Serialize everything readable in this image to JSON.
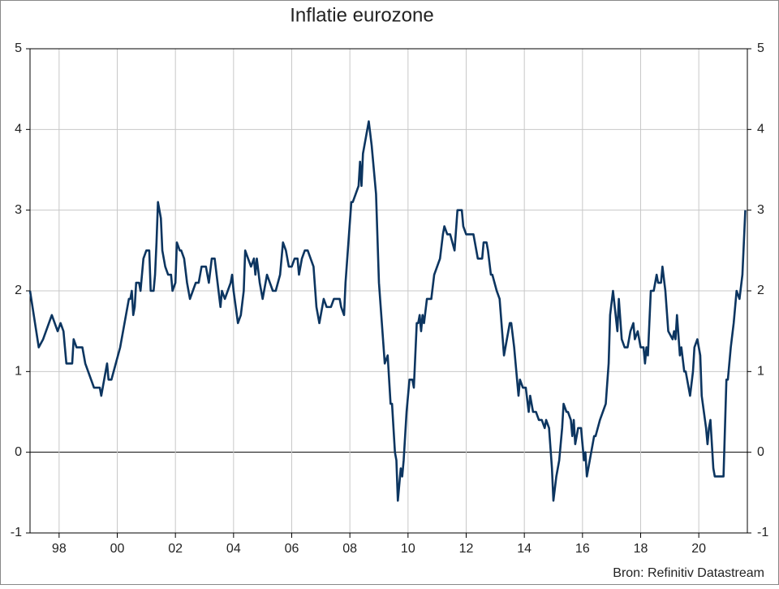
{
  "chart_data": {
    "type": "line",
    "title": "Inflatie eurozone",
    "source": "Bron: Refinitiv Datastream",
    "xlim": [
      1997.0,
      2021.67
    ],
    "ylim": [
      -1,
      5
    ],
    "xticks": [
      {
        "value": 1998,
        "label": "98"
      },
      {
        "value": 2000,
        "label": "00"
      },
      {
        "value": 2002,
        "label": "02"
      },
      {
        "value": 2004,
        "label": "04"
      },
      {
        "value": 2006,
        "label": "06"
      },
      {
        "value": 2008,
        "label": "08"
      },
      {
        "value": 2010,
        "label": "10"
      },
      {
        "value": 2012,
        "label": "12"
      },
      {
        "value": 2014,
        "label": "14"
      },
      {
        "value": 2016,
        "label": "16"
      },
      {
        "value": 2018,
        "label": "18"
      },
      {
        "value": 2020,
        "label": "20"
      }
    ],
    "yticks": [
      -1,
      0,
      1,
      2,
      3,
      4,
      5
    ],
    "grid": true,
    "series": [
      {
        "color": "#0c3560",
        "x": [
          1997.0,
          1997.3,
          1997.45,
          1997.75,
          1997.95,
          1998.05,
          1998.15,
          1998.25,
          1998.45,
          1998.5,
          1998.6,
          1998.8,
          1998.9,
          1999.2,
          1999.4,
          1999.45,
          1999.55,
          1999.65,
          1999.7,
          1999.8,
          1999.95,
          2000.1,
          2000.4,
          2000.45,
          2000.5,
          2000.55,
          2000.6,
          2000.65,
          2000.75,
          2000.8,
          2000.9,
          2001.0,
          2001.1,
          2001.15,
          2001.25,
          2001.3,
          2001.35,
          2001.4,
          2001.5,
          2001.55,
          2001.65,
          2001.75,
          2001.85,
          2001.9,
          2002.0,
          2002.05,
          2002.15,
          2002.2,
          2002.3,
          2002.4,
          2002.5,
          2002.6,
          2002.7,
          2002.8,
          2002.9,
          2003.05,
          2003.15,
          2003.25,
          2003.35,
          2003.45,
          2003.55,
          2003.6,
          2003.7,
          2003.8,
          2003.9,
          2003.95,
          2004.0,
          2004.15,
          2004.25,
          2004.35,
          2004.4,
          2004.5,
          2004.6,
          2004.7,
          2004.75,
          2004.8,
          2004.9,
          2005.0,
          2005.1,
          2005.15,
          2005.25,
          2005.35,
          2005.45,
          2005.6,
          2005.7,
          2005.8,
          2005.9,
          2006.0,
          2006.1,
          2006.2,
          2006.25,
          2006.35,
          2006.45,
          2006.55,
          2006.75,
          2006.85,
          2006.95,
          2007.05,
          2007.1,
          2007.2,
          2007.35,
          2007.45,
          2007.65,
          2007.7,
          2007.8,
          2007.85,
          2007.95,
          2008.05,
          2008.1,
          2008.2,
          2008.3,
          2008.35,
          2008.4,
          2008.45,
          2008.6,
          2008.65,
          2008.75,
          2008.9,
          2009.0,
          2009.1,
          2009.2,
          2009.3,
          2009.4,
          2009.45,
          2009.55,
          2009.6,
          2009.65,
          2009.75,
          2009.8,
          2009.85,
          2009.95,
          2010.05,
          2010.15,
          2010.2,
          2010.3,
          2010.35,
          2010.4,
          2010.45,
          2010.5,
          2010.55,
          2010.65,
          2010.8,
          2010.9,
          2011.1,
          2011.2,
          2011.25,
          2011.35,
          2011.45,
          2011.6,
          2011.7,
          2011.85,
          2011.9,
          2012.0,
          2012.25,
          2012.3,
          2012.4,
          2012.55,
          2012.6,
          2012.7,
          2012.75,
          2012.85,
          2012.9,
          2013.05,
          2013.15,
          2013.3,
          2013.4,
          2013.5,
          2013.55,
          2013.65,
          2013.7,
          2013.8,
          2013.85,
          2013.95,
          2014.05,
          2014.15,
          2014.2,
          2014.3,
          2014.4,
          2014.5,
          2014.6,
          2014.7,
          2014.75,
          2014.85,
          2014.95,
          2015.0,
          2015.1,
          2015.2,
          2015.3,
          2015.35,
          2015.45,
          2015.5,
          2015.6,
          2015.65,
          2015.7,
          2015.75,
          2015.85,
          2015.95,
          2016.05,
          2016.1,
          2016.15,
          2016.25,
          2016.35,
          2016.4,
          2016.45,
          2016.6,
          2016.7,
          2016.8,
          2016.9,
          2016.95,
          2017.05,
          2017.2,
          2017.25,
          2017.35,
          2017.45,
          2017.55,
          2017.65,
          2017.75,
          2017.8,
          2017.9,
          2018.0,
          2018.1,
          2018.15,
          2018.2,
          2018.25,
          2018.35,
          2018.45,
          2018.55,
          2018.6,
          2018.7,
          2018.75,
          2018.85,
          2018.95,
          2019.1,
          2019.15,
          2019.2,
          2019.25,
          2019.35,
          2019.4,
          2019.5,
          2019.55,
          2019.65,
          2019.7,
          2019.8,
          2019.85,
          2019.95,
          2020.05,
          2020.1,
          2020.25,
          2020.3,
          2020.35,
          2020.4,
          2020.5,
          2020.55,
          2020.85,
          2020.95,
          2021.0,
          2021.1,
          2021.2,
          2021.3,
          2021.4,
          2021.5,
          2021.6
        ],
        "values": [
          2.0,
          1.3,
          1.4,
          1.7,
          1.5,
          1.6,
          1.5,
          1.1,
          1.1,
          1.4,
          1.3,
          1.3,
          1.1,
          0.8,
          0.8,
          0.7,
          0.9,
          1.1,
          0.9,
          0.9,
          1.1,
          1.3,
          1.9,
          1.9,
          2.0,
          1.7,
          1.8,
          2.1,
          2.1,
          2.0,
          2.4,
          2.5,
          2.5,
          2.0,
          2.0,
          2.2,
          2.6,
          3.1,
          2.9,
          2.5,
          2.3,
          2.2,
          2.2,
          2.0,
          2.1,
          2.6,
          2.5,
          2.5,
          2.4,
          2.1,
          1.9,
          2.0,
          2.1,
          2.1,
          2.3,
          2.3,
          2.1,
          2.4,
          2.4,
          2.1,
          1.8,
          2.0,
          1.9,
          2.0,
          2.1,
          2.2,
          2.0,
          1.6,
          1.7,
          2.0,
          2.5,
          2.4,
          2.3,
          2.4,
          2.2,
          2.4,
          2.1,
          1.9,
          2.1,
          2.2,
          2.1,
          2.0,
          2.0,
          2.2,
          2.6,
          2.5,
          2.3,
          2.3,
          2.4,
          2.4,
          2.2,
          2.4,
          2.5,
          2.5,
          2.3,
          1.8,
          1.6,
          1.8,
          1.9,
          1.8,
          1.8,
          1.9,
          1.9,
          1.8,
          1.7,
          2.1,
          2.6,
          3.1,
          3.1,
          3.2,
          3.3,
          3.6,
          3.3,
          3.7,
          4.0,
          4.1,
          3.8,
          3.2,
          2.1,
          1.6,
          1.1,
          1.2,
          0.6,
          0.6,
          0.0,
          -0.1,
          -0.6,
          -0.2,
          -0.3,
          -0.1,
          0.5,
          0.9,
          0.9,
          0.8,
          1.6,
          1.6,
          1.7,
          1.5,
          1.7,
          1.6,
          1.9,
          1.9,
          2.2,
          2.4,
          2.7,
          2.8,
          2.7,
          2.7,
          2.5,
          3.0,
          3.0,
          2.8,
          2.7,
          2.7,
          2.6,
          2.4,
          2.4,
          2.6,
          2.6,
          2.5,
          2.2,
          2.2,
          2.0,
          1.9,
          1.2,
          1.4,
          1.6,
          1.6,
          1.3,
          1.1,
          0.7,
          0.9,
          0.8,
          0.8,
          0.5,
          0.7,
          0.5,
          0.5,
          0.4,
          0.4,
          0.3,
          0.4,
          0.3,
          -0.2,
          -0.6,
          -0.3,
          -0.1,
          0.3,
          0.6,
          0.5,
          0.5,
          0.4,
          0.2,
          0.4,
          0.1,
          0.3,
          0.3,
          -0.1,
          0.0,
          -0.3,
          -0.1,
          0.1,
          0.2,
          0.2,
          0.4,
          0.5,
          0.6,
          1.1,
          1.7,
          2.0,
          1.5,
          1.9,
          1.4,
          1.3,
          1.3,
          1.5,
          1.6,
          1.4,
          1.5,
          1.3,
          1.3,
          1.1,
          1.3,
          1.2,
          2.0,
          2.0,
          2.2,
          2.1,
          2.1,
          2.3,
          2.0,
          1.5,
          1.4,
          1.5,
          1.4,
          1.7,
          1.2,
          1.3,
          1.0,
          1.0,
          0.8,
          0.7,
          1.0,
          1.3,
          1.4,
          1.2,
          0.7,
          0.3,
          0.1,
          0.3,
          0.4,
          -0.2,
          -0.3,
          -0.3,
          0.9,
          0.9,
          1.3,
          1.6,
          2.0,
          1.9,
          2.2,
          3.0
        ]
      }
    ]
  }
}
